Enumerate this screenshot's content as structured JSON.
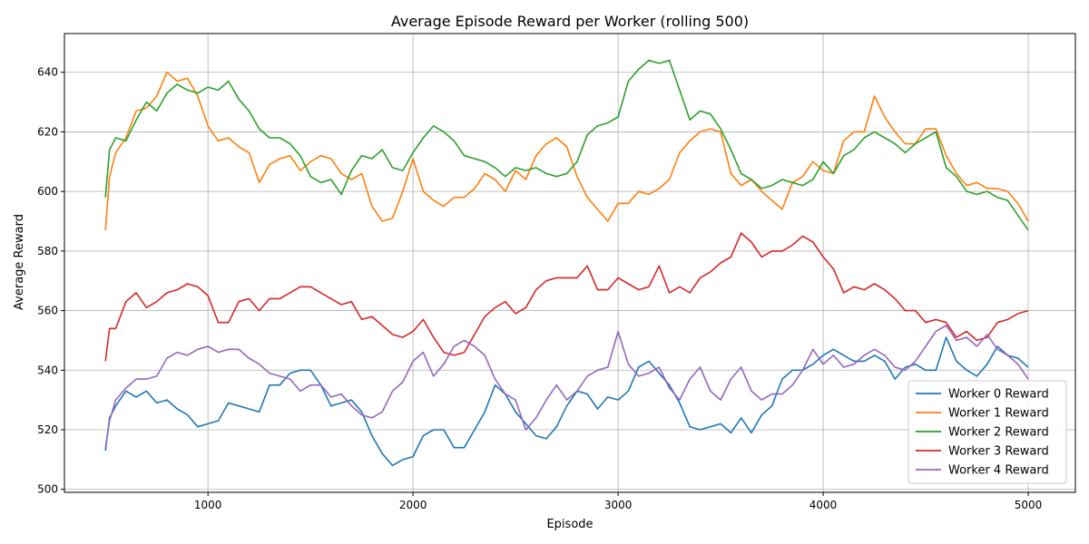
{
  "chart_data": {
    "type": "line",
    "title": "Average Episode Reward per Worker (rolling 500)",
    "xlabel": "Episode",
    "ylabel": "Average Reward",
    "xlim": [
      300,
      5230
    ],
    "ylim": [
      499,
      653
    ],
    "xticks": [
      1000,
      2000,
      3000,
      4000,
      5000
    ],
    "yticks": [
      500,
      520,
      540,
      560,
      580,
      600,
      620,
      640
    ],
    "grid": true,
    "legend_position": "lower-right",
    "series": [
      {
        "name": "Worker 0 Reward",
        "color": "#1f77b4",
        "x": [
          500,
          520,
          550,
          600,
          650,
          700,
          750,
          800,
          850,
          900,
          950,
          1000,
          1050,
          1100,
          1150,
          1200,
          1250,
          1300,
          1350,
          1400,
          1450,
          1500,
          1550,
          1600,
          1650,
          1700,
          1750,
          1800,
          1850,
          1900,
          1950,
          2000,
          2050,
          2100,
          2150,
          2200,
          2250,
          2300,
          2350,
          2400,
          2450,
          2500,
          2550,
          2600,
          2650,
          2700,
          2750,
          2800,
          2850,
          2900,
          2950,
          3000,
          3050,
          3100,
          3150,
          3200,
          3250,
          3300,
          3350,
          3400,
          3450,
          3500,
          3550,
          3600,
          3650,
          3700,
          3750,
          3800,
          3850,
          3900,
          3950,
          4000,
          4050,
          4100,
          4150,
          4200,
          4250,
          4300,
          4350,
          4400,
          4450,
          4500,
          4550,
          4600,
          4650,
          4700,
          4750,
          4800,
          4850,
          4900,
          4950,
          5000
        ],
        "y": [
          513,
          524,
          528,
          533,
          531,
          533,
          529,
          530,
          527,
          525,
          521,
          522,
          523,
          529,
          528,
          527,
          526,
          535,
          535,
          539,
          540,
          540,
          535,
          528,
          529,
          530,
          526,
          518,
          512,
          508,
          510,
          511,
          518,
          520,
          520,
          514,
          514,
          520,
          526,
          535,
          532,
          526,
          522,
          518,
          517,
          521,
          528,
          533,
          532,
          527,
          531,
          530,
          533,
          541,
          543,
          539,
          535,
          529,
          521,
          520,
          521,
          522,
          519,
          524,
          519,
          525,
          528,
          537,
          540,
          540,
          542,
          545,
          547,
          545,
          543,
          543,
          545,
          543,
          537,
          541,
          542,
          540,
          540,
          551,
          543,
          540,
          538,
          542,
          548,
          545,
          544,
          541
        ]
      },
      {
        "name": "Worker 1 Reward",
        "color": "#ff7f0e",
        "x": [
          500,
          520,
          550,
          600,
          650,
          700,
          750,
          800,
          850,
          900,
          950,
          1000,
          1050,
          1100,
          1150,
          1200,
          1250,
          1300,
          1350,
          1400,
          1450,
          1500,
          1550,
          1600,
          1650,
          1700,
          1750,
          1800,
          1850,
          1900,
          1950,
          2000,
          2050,
          2100,
          2150,
          2200,
          2250,
          2300,
          2350,
          2400,
          2450,
          2500,
          2550,
          2600,
          2650,
          2700,
          2750,
          2800,
          2850,
          2900,
          2950,
          3000,
          3050,
          3100,
          3150,
          3200,
          3250,
          3300,
          3350,
          3400,
          3450,
          3500,
          3550,
          3600,
          3650,
          3700,
          3750,
          3800,
          3850,
          3900,
          3950,
          4000,
          4050,
          4100,
          4150,
          4200,
          4250,
          4300,
          4350,
          4400,
          4450,
          4500,
          4550,
          4600,
          4650,
          4700,
          4750,
          4800,
          4850,
          4900,
          4950,
          5000
        ],
        "y": [
          587,
          605,
          613,
          618,
          627,
          628,
          632,
          640,
          637,
          638,
          632,
          622,
          617,
          618,
          615,
          613,
          603,
          609,
          611,
          612,
          607,
          610,
          612,
          611,
          606,
          604,
          606,
          595,
          590,
          591,
          600,
          611,
          600,
          597,
          595,
          598,
          598,
          601,
          606,
          604,
          600,
          607,
          604,
          612,
          616,
          618,
          615,
          605,
          598,
          594,
          590,
          596,
          596,
          600,
          599,
          601,
          604,
          613,
          617,
          620,
          621,
          620,
          606,
          602,
          604,
          600,
          597,
          594,
          603,
          605,
          610,
          607,
          606,
          617,
          620,
          620,
          632,
          625,
          620,
          616,
          616,
          621,
          621,
          612,
          606,
          602,
          603,
          601,
          601,
          600,
          596,
          590
        ]
      },
      {
        "name": "Worker 2 Reward",
        "color": "#2ca02c",
        "x": [
          500,
          520,
          550,
          600,
          650,
          700,
          750,
          800,
          850,
          900,
          950,
          1000,
          1050,
          1100,
          1150,
          1200,
          1250,
          1300,
          1350,
          1400,
          1450,
          1500,
          1550,
          1600,
          1650,
          1700,
          1750,
          1800,
          1850,
          1900,
          1950,
          2000,
          2050,
          2100,
          2150,
          2200,
          2250,
          2300,
          2350,
          2400,
          2450,
          2500,
          2550,
          2600,
          2650,
          2700,
          2750,
          2800,
          2850,
          2900,
          2950,
          3000,
          3050,
          3100,
          3150,
          3200,
          3250,
          3300,
          3350,
          3400,
          3450,
          3500,
          3550,
          3600,
          3650,
          3700,
          3750,
          3800,
          3850,
          3900,
          3950,
          4000,
          4050,
          4100,
          4150,
          4200,
          4250,
          4300,
          4350,
          4400,
          4450,
          4500,
          4550,
          4600,
          4650,
          4700,
          4750,
          4800,
          4850,
          4900,
          4950,
          5000
        ],
        "y": [
          598,
          614,
          618,
          617,
          624,
          630,
          627,
          633,
          636,
          634,
          633,
          635,
          634,
          637,
          631,
          627,
          621,
          618,
          618,
          616,
          612,
          605,
          603,
          604,
          599,
          607,
          612,
          611,
          614,
          608,
          607,
          613,
          618,
          622,
          620,
          617,
          612,
          611,
          610,
          608,
          605,
          608,
          607,
          608,
          606,
          605,
          606,
          610,
          619,
          622,
          623,
          625,
          637,
          641,
          644,
          643,
          644,
          634,
          624,
          627,
          626,
          621,
          614,
          606,
          604,
          601,
          602,
          604,
          603,
          602,
          604,
          610,
          606,
          612,
          614,
          618,
          620,
          618,
          616,
          613,
          616,
          618,
          620,
          608,
          605,
          600,
          599,
          600,
          598,
          597,
          592,
          587
        ]
      },
      {
        "name": "Worker 3 Reward",
        "color": "#d62728",
        "x": [
          500,
          520,
          550,
          600,
          650,
          700,
          750,
          800,
          850,
          900,
          950,
          1000,
          1050,
          1100,
          1150,
          1200,
          1250,
          1300,
          1350,
          1400,
          1450,
          1500,
          1550,
          1600,
          1650,
          1700,
          1750,
          1800,
          1850,
          1900,
          1950,
          2000,
          2050,
          2100,
          2150,
          2200,
          2250,
          2300,
          2350,
          2400,
          2450,
          2500,
          2550,
          2600,
          2650,
          2700,
          2750,
          2800,
          2850,
          2900,
          2950,
          3000,
          3050,
          3100,
          3150,
          3200,
          3250,
          3300,
          3350,
          3400,
          3450,
          3500,
          3550,
          3600,
          3650,
          3700,
          3750,
          3800,
          3850,
          3900,
          3950,
          4000,
          4050,
          4100,
          4150,
          4200,
          4250,
          4300,
          4350,
          4400,
          4450,
          4500,
          4550,
          4600,
          4650,
          4700,
          4750,
          4800,
          4850,
          4900,
          4950,
          5000
        ],
        "y": [
          543,
          554,
          554,
          563,
          566,
          561,
          563,
          566,
          567,
          569,
          568,
          565,
          556,
          556,
          563,
          564,
          560,
          564,
          564,
          566,
          568,
          568,
          566,
          564,
          562,
          563,
          557,
          558,
          555,
          552,
          551,
          553,
          557,
          551,
          546,
          545,
          546,
          552,
          558,
          561,
          563,
          559,
          561,
          567,
          570,
          571,
          571,
          571,
          575,
          567,
          567,
          571,
          569,
          567,
          568,
          575,
          566,
          568,
          566,
          571,
          573,
          576,
          578,
          586,
          583,
          578,
          580,
          580,
          582,
          585,
          583,
          578,
          574,
          566,
          568,
          567,
          569,
          567,
          564,
          560,
          560,
          556,
          557,
          556,
          551,
          553,
          550,
          551,
          556,
          557,
          559,
          560
        ]
      },
      {
        "name": "Worker 4 Reward",
        "color": "#9467bd",
        "x": [
          500,
          520,
          550,
          600,
          650,
          700,
          750,
          800,
          850,
          900,
          950,
          1000,
          1050,
          1100,
          1150,
          1200,
          1250,
          1300,
          1350,
          1400,
          1450,
          1500,
          1550,
          1600,
          1650,
          1700,
          1750,
          1800,
          1850,
          1900,
          1950,
          2000,
          2050,
          2100,
          2150,
          2200,
          2250,
          2300,
          2350,
          2400,
          2450,
          2500,
          2550,
          2600,
          2650,
          2700,
          2750,
          2800,
          2850,
          2900,
          2950,
          3000,
          3050,
          3100,
          3150,
          3200,
          3250,
          3300,
          3350,
          3400,
          3450,
          3500,
          3550,
          3600,
          3650,
          3700,
          3750,
          3800,
          3850,
          3900,
          3950,
          4000,
          4050,
          4100,
          4150,
          4200,
          4250,
          4300,
          4350,
          4400,
          4450,
          4500,
          4550,
          4600,
          4650,
          4700,
          4750,
          4800,
          4850,
          4900,
          4950,
          5000
        ],
        "y": [
          514,
          523,
          530,
          534,
          537,
          537,
          538,
          544,
          546,
          545,
          547,
          548,
          546,
          547,
          547,
          544,
          542,
          539,
          538,
          537,
          533,
          535,
          535,
          531,
          532,
          528,
          525,
          524,
          526,
          533,
          536,
          543,
          546,
          538,
          542,
          548,
          550,
          548,
          545,
          537,
          532,
          530,
          520,
          524,
          530,
          535,
          530,
          533,
          538,
          540,
          541,
          553,
          542,
          538,
          539,
          541,
          534,
          530,
          537,
          541,
          533,
          530,
          537,
          541,
          533,
          530,
          532,
          532,
          535,
          540,
          547,
          542,
          545,
          541,
          542,
          545,
          547,
          545,
          541,
          540,
          543,
          548,
          553,
          555,
          550,
          551,
          548,
          552,
          547,
          545,
          542,
          537
        ]
      }
    ]
  }
}
